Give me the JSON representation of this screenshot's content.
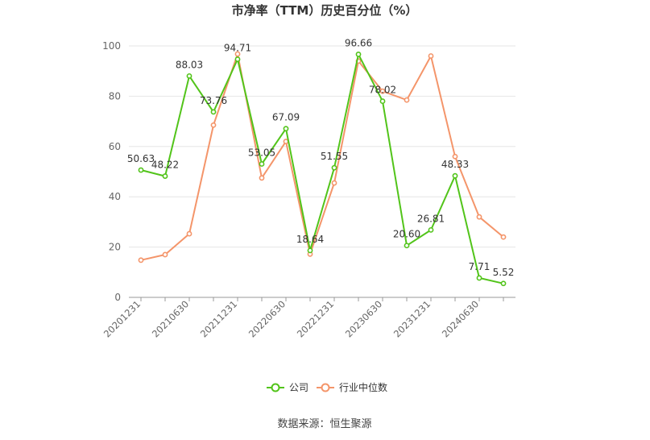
{
  "chart_data": {
    "type": "line",
    "title": "市净率（TTM）历史百分位（%）",
    "ylim": [
      0,
      100
    ],
    "yticks": [
      0,
      20,
      40,
      60,
      80,
      100
    ],
    "x": [
      "20201231",
      "20210331",
      "20210630",
      "20210930",
      "20211231",
      "20220331",
      "20220630",
      "20220930",
      "20221231",
      "20230331",
      "20230630",
      "20230930",
      "20231231",
      "20240331",
      "20240630",
      "20240930"
    ],
    "xtick_labels": [
      "20201231",
      "20210630",
      "20211231",
      "20220630",
      "20221231",
      "20230630",
      "20231231",
      "20240630"
    ],
    "series": [
      {
        "name": "公司",
        "color": "#52c41a",
        "values": [
          50.63,
          48.22,
          88.03,
          73.76,
          94.71,
          53.05,
          67.09,
          18.64,
          51.55,
          96.66,
          78.02,
          20.6,
          26.81,
          48.33,
          7.71,
          5.52
        ],
        "labels": [
          "50.63",
          "48.22",
          "88.03",
          "73.76",
          "94.71",
          "53.05",
          "67.09",
          "18.64",
          "51.55",
          "96.66",
          "78.02",
          "20.60",
          "26.81",
          "48.33",
          "7.71",
          "5.52"
        ]
      },
      {
        "name": "行业中位数",
        "color": "#f4956a",
        "values": [
          14.8,
          17.0,
          25.3,
          68.5,
          96.8,
          47.5,
          62.0,
          17.2,
          45.5,
          94.0,
          82.0,
          78.5,
          96.0,
          56.0,
          32.0,
          24.0
        ]
      }
    ],
    "grid": true,
    "legend_position": "bottom"
  },
  "source": "数据来源：恒生聚源"
}
